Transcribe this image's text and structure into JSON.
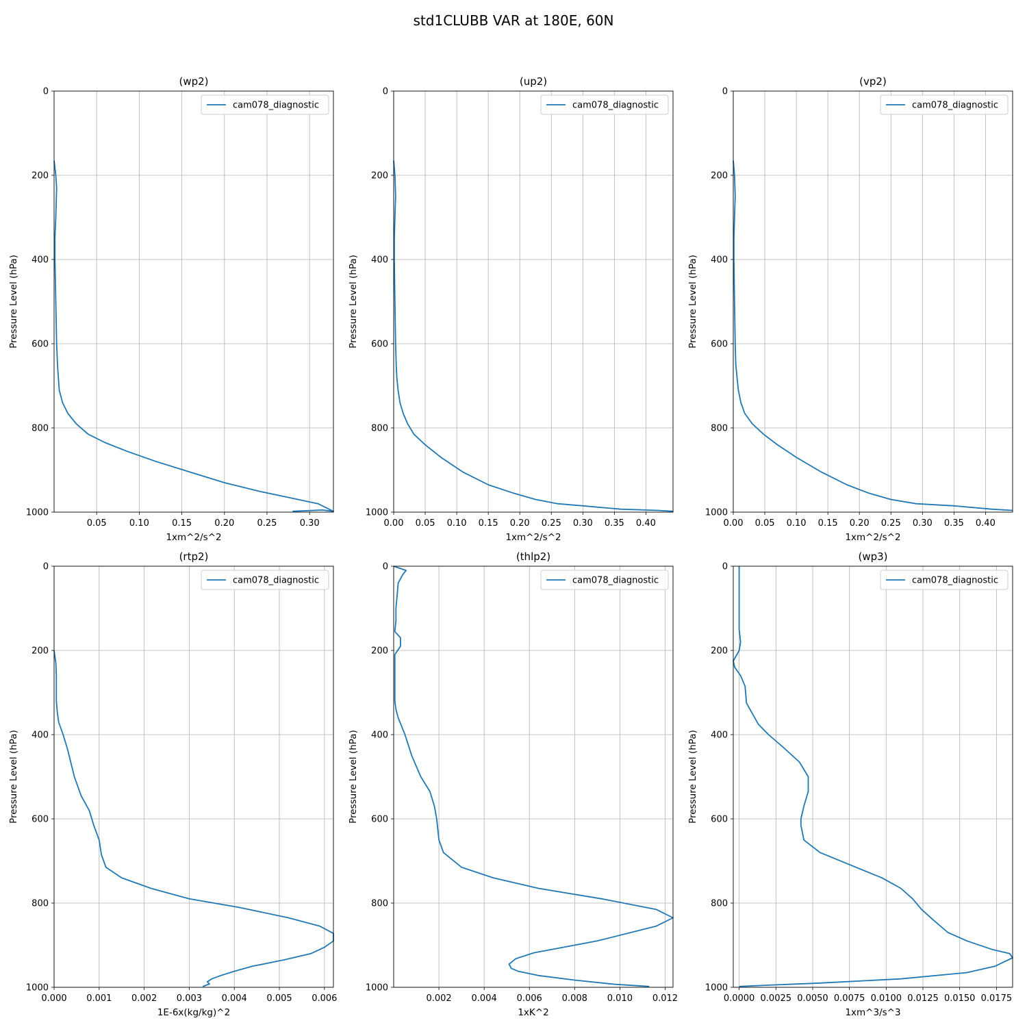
{
  "figure_title": "std1CLUBB VAR at 180E, 60N",
  "chart_data": [
    {
      "type": "line",
      "title": "(wp2)",
      "xlabel": "1xm^2/s^2",
      "ylabel": "Pressure Level (hPa)",
      "xlim": [
        0,
        0.328
      ],
      "ylim": [
        1000,
        0
      ],
      "xticks": [
        0.05,
        0.1,
        0.15,
        0.2,
        0.25,
        0.3
      ],
      "xtick_labels": [
        "0.05",
        "0.10",
        "0.15",
        "0.20",
        "0.25",
        "0.30"
      ],
      "yticks": [
        0,
        200,
        400,
        600,
        800,
        1000
      ],
      "ytick_labels": [
        "0",
        "200",
        "400",
        "600",
        "800",
        "1000"
      ],
      "grid": true,
      "legend_position": "top-right",
      "series": [
        {
          "name": "cam078_diagnostic",
          "color": "#1f77b4",
          "x": [
            0.0,
            0.002,
            0.003,
            0.002,
            0.001,
            0.001,
            0.002,
            0.003,
            0.004,
            0.005,
            0.006,
            0.01,
            0.016,
            0.026,
            0.04,
            0.06,
            0.085,
            0.12,
            0.16,
            0.2,
            0.24,
            0.275,
            0.31,
            0.32,
            0.328,
            0.315,
            0.28
          ],
          "y": [
            165,
            200,
            230,
            300,
            350,
            400,
            500,
            600,
            650,
            680,
            710,
            740,
            765,
            790,
            815,
            835,
            855,
            880,
            905,
            930,
            950,
            965,
            980,
            990,
            998,
            995,
            998
          ]
        }
      ]
    },
    {
      "type": "line",
      "title": "(up2)",
      "xlabel": "1xm^2/s^2",
      "ylabel": "Pressure Level (hPa)",
      "xlim": [
        0,
        0.443
      ],
      "ylim": [
        1000,
        0
      ],
      "xticks": [
        0.0,
        0.05,
        0.1,
        0.15,
        0.2,
        0.25,
        0.3,
        0.35,
        0.4
      ],
      "xtick_labels": [
        "0.00",
        "0.05",
        "0.10",
        "0.15",
        "0.20",
        "0.25",
        "0.30",
        "0.35",
        "0.40"
      ],
      "yticks": [
        0,
        200,
        400,
        600,
        800,
        1000
      ],
      "ytick_labels": [
        "0",
        "200",
        "400",
        "600",
        "800",
        "1000"
      ],
      "grid": true,
      "legend_position": "top-right",
      "series": [
        {
          "name": "cam078_diagnostic",
          "color": "#1f77b4",
          "x": [
            0.0,
            0.002,
            0.003,
            0.002,
            0.001,
            0.001,
            0.002,
            0.003,
            0.004,
            0.005,
            0.007,
            0.01,
            0.015,
            0.022,
            0.032,
            0.05,
            0.075,
            0.11,
            0.15,
            0.19,
            0.225,
            0.26,
            0.3,
            0.36,
            0.42,
            0.443
          ],
          "y": [
            165,
            200,
            250,
            300,
            350,
            400,
            500,
            600,
            650,
            680,
            710,
            740,
            765,
            790,
            815,
            840,
            870,
            905,
            935,
            955,
            970,
            980,
            985,
            993,
            996,
            998
          ]
        }
      ]
    },
    {
      "type": "line",
      "title": "(vp2)",
      "xlabel": "1xm^2/s^2",
      "ylabel": "Pressure Level (hPa)",
      "xlim": [
        0,
        0.443
      ],
      "ylim": [
        1000,
        0
      ],
      "xticks": [
        0.0,
        0.05,
        0.1,
        0.15,
        0.2,
        0.25,
        0.3,
        0.35,
        0.4
      ],
      "xtick_labels": [
        "0.00",
        "0.05",
        "0.10",
        "0.15",
        "0.20",
        "0.25",
        "0.30",
        "0.35",
        "0.40"
      ],
      "yticks": [
        0,
        200,
        400,
        600,
        800,
        1000
      ],
      "ytick_labels": [
        "0",
        "200",
        "400",
        "600",
        "800",
        "1000"
      ],
      "grid": true,
      "legend_position": "top-right",
      "series": [
        {
          "name": "cam078_diagnostic",
          "color": "#1f77b4",
          "x": [
            0.0,
            0.002,
            0.003,
            0.002,
            0.001,
            0.001,
            0.002,
            0.003,
            0.004,
            0.006,
            0.008,
            0.012,
            0.018,
            0.03,
            0.048,
            0.07,
            0.1,
            0.14,
            0.18,
            0.215,
            0.25,
            0.29,
            0.35,
            0.41,
            0.443
          ],
          "y": [
            165,
            200,
            250,
            300,
            350,
            400,
            500,
            600,
            650,
            680,
            710,
            740,
            765,
            790,
            815,
            840,
            870,
            905,
            935,
            955,
            970,
            980,
            985,
            993,
            996
          ]
        }
      ]
    },
    {
      "type": "line",
      "title": "(rtp2)",
      "xlabel": "1E-6x(kg/kg)^2",
      "ylabel": "Pressure Level (hPa)",
      "xlim": [
        0,
        0.0062
      ],
      "ylim": [
        1000,
        0
      ],
      "xticks": [
        0,
        0.001,
        0.002,
        0.003,
        0.004,
        0.005,
        0.006
      ],
      "xtick_labels": [
        "0.000",
        "0.001",
        "0.002",
        "0.003",
        "0.004",
        "0.005",
        "0.006"
      ],
      "yticks": [
        0,
        200,
        400,
        600,
        800,
        1000
      ],
      "ytick_labels": [
        "0",
        "200",
        "400",
        "600",
        "800",
        "1000"
      ],
      "grid": true,
      "legend_position": "top-right",
      "series": [
        {
          "name": "cam078_diagnostic",
          "color": "#1f77b4",
          "x": [
            0.0,
            4e-05,
            5e-05,
            5e-05,
            5e-05,
            7e-05,
            0.0001,
            0.0002,
            0.0003,
            0.00045,
            0.0006,
            0.00078,
            0.00088,
            0.001,
            0.00105,
            0.00115,
            0.0015,
            0.00215,
            0.003,
            0.0041,
            0.0052,
            0.0059,
            0.0062,
            0.0062,
            0.006,
            0.0057,
            0.0051,
            0.0044,
            0.004,
            0.0037,
            0.0035,
            0.0034,
            0.00345,
            0.0033
          ],
          "y": [
            200,
            230,
            260,
            290,
            320,
            345,
            370,
            400,
            435,
            500,
            545,
            580,
            615,
            650,
            685,
            715,
            740,
            765,
            790,
            810,
            835,
            855,
            872,
            890,
            905,
            920,
            935,
            950,
            962,
            972,
            980,
            987,
            992,
            998
          ]
        }
      ]
    },
    {
      "type": "line",
      "title": "(thlp2)",
      "xlabel": "1xK^2",
      "ylabel": "Pressure Level (hPa)",
      "xlim": [
        0,
        0.01235
      ],
      "ylim": [
        1000,
        0
      ],
      "xticks": [
        0.002,
        0.004,
        0.006,
        0.008,
        0.01,
        0.012
      ],
      "xtick_labels": [
        "0.002",
        "0.004",
        "0.006",
        "0.008",
        "0.010",
        "0.012"
      ],
      "yticks": [
        0,
        200,
        400,
        600,
        800,
        1000
      ],
      "ytick_labels": [
        "0",
        "200",
        "400",
        "600",
        "800",
        "1000"
      ],
      "grid": true,
      "legend_position": "top-right",
      "series": [
        {
          "name": "cam078_diagnostic",
          "color": "#1f77b4",
          "x": [
            0.0,
            0.00055,
            0.0004,
            0.0002,
            0.00015,
            0.0001,
            0.0001,
            5e-05,
            0.0003,
            0.0003,
            5e-05,
            5e-05,
            5e-05,
            5e-05,
            0.0001,
            0.0002,
            0.0005,
            0.0008,
            0.0012,
            0.0016,
            0.0018,
            0.0019,
            0.002,
            0.0022,
            0.003,
            0.0044,
            0.0064,
            0.0092,
            0.0116,
            0.01235,
            0.0116,
            0.009,
            0.0062,
            0.0054,
            0.0051,
            0.0052,
            0.0055,
            0.0064,
            0.008,
            0.0098,
            0.0113
          ],
          "y": [
            0,
            10,
            20,
            40,
            70,
            100,
            130,
            155,
            170,
            190,
            210,
            250,
            290,
            320,
            340,
            360,
            400,
            450,
            500,
            535,
            570,
            600,
            650,
            680,
            715,
            740,
            765,
            790,
            815,
            835,
            855,
            890,
            918,
            932,
            945,
            955,
            962,
            972,
            983,
            993,
            998
          ]
        }
      ]
    },
    {
      "type": "line",
      "title": "(wp3)",
      "xlabel": "1xm^3/s^3",
      "ylabel": "Pressure Level (hPa)",
      "xlim": [
        -0.0004,
        0.0186
      ],
      "ylim": [
        1000,
        0
      ],
      "xticks": [
        0.0,
        0.0025,
        0.005,
        0.0075,
        0.01,
        0.0125,
        0.015,
        0.0175
      ],
      "xtick_labels": [
        "0.0000",
        "0.0025",
        "0.0050",
        "0.0075",
        "0.0100",
        "0.0125",
        "0.0150",
        "0.0175"
      ],
      "yticks": [
        0,
        200,
        400,
        600,
        800,
        1000
      ],
      "ytick_labels": [
        "0",
        "200",
        "400",
        "600",
        "800",
        "1000"
      ],
      "grid": true,
      "legend_position": "top-right",
      "series": [
        {
          "name": "cam078_diagnostic",
          "color": "#1f77b4",
          "x": [
            0.0,
            0.0,
            0.0,
            0.0,
            0.0001,
            0.0,
            -0.0004,
            -0.0003,
            0.0001,
            0.0004,
            0.0005,
            0.0009,
            0.0013,
            0.002,
            0.003,
            0.0041,
            0.0047,
            0.0047,
            0.0044,
            0.0042,
            0.0042,
            0.0044,
            0.0055,
            0.0076,
            0.0097,
            0.011,
            0.0118,
            0.0124,
            0.0132,
            0.0142,
            0.0155,
            0.0172,
            0.0184,
            0.0186,
            0.018,
            0.0174,
            0.0155,
            0.011,
            0.0055,
            0.002,
            0.0
          ],
          "y": [
            0,
            50,
            100,
            150,
            180,
            200,
            225,
            240,
            260,
            285,
            325,
            350,
            375,
            400,
            430,
            465,
            500,
            535,
            570,
            600,
            615,
            650,
            680,
            710,
            740,
            765,
            790,
            815,
            840,
            870,
            890,
            910,
            920,
            930,
            940,
            950,
            965,
            980,
            990,
            995,
            998
          ]
        }
      ]
    }
  ]
}
